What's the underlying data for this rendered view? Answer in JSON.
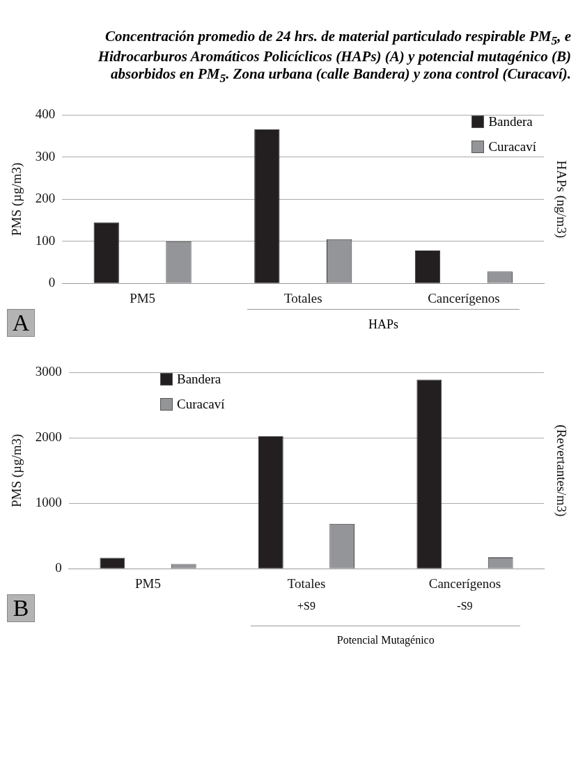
{
  "chart_data": [
    {
      "type": "bar",
      "title": "Concentración promedio de 24 hrs. de material particulado respirable PM$_{5}$, e Hidrocarburos Aromáticos Policíclicos (HAPs) (A) y potencial mutagénico (B) absorbidos en PM$_{5}$. Zona urbana (calle Bandera) y zona control (Curacaví).",
      "categories": [
        "PM5",
        "Totales",
        "Cancerígenos"
      ],
      "series": [
        {
          "name": "Bandera",
          "color": "#231f20",
          "values": [
            145,
            366,
            78
          ]
        },
        {
          "name": "Curacaví",
          "color": "#939598",
          "values": [
            100,
            105,
            28
          ]
        }
      ],
      "ylabel": "PMS (µg/m3)",
      "y2label": "HAPs (ng/m3)",
      "ylim": [
        0,
        400
      ],
      "yticks": [
        0,
        100,
        200,
        300,
        400
      ],
      "grid": "y",
      "legend": "top right",
      "annotations": [
        "A",
        "HAPs"
      ]
    },
    {
      "type": "bar",
      "categories": [
        "PM5",
        "Totales",
        "Cancerígenos"
      ],
      "series": [
        {
          "name": "Bandera",
          "color": "#231f20",
          "values": [
            167,
            2026,
            2893
          ]
        },
        {
          "name": "Curacaví",
          "color": "#939598",
          "values": [
            72,
            687,
            173
          ]
        }
      ],
      "ylabel": "PMS (µg/m3)",
      "y2label": "(Revertantes/m3)",
      "ylim": [
        0,
        3000
      ],
      "yticks": [
        0,
        1000,
        2000,
        3000
      ],
      "grid": "y",
      "legend": "top left",
      "annotations": [
        "B",
        "+S9",
        "-S9",
        "Potencial Mutagénico"
      ]
    }
  ]
}
